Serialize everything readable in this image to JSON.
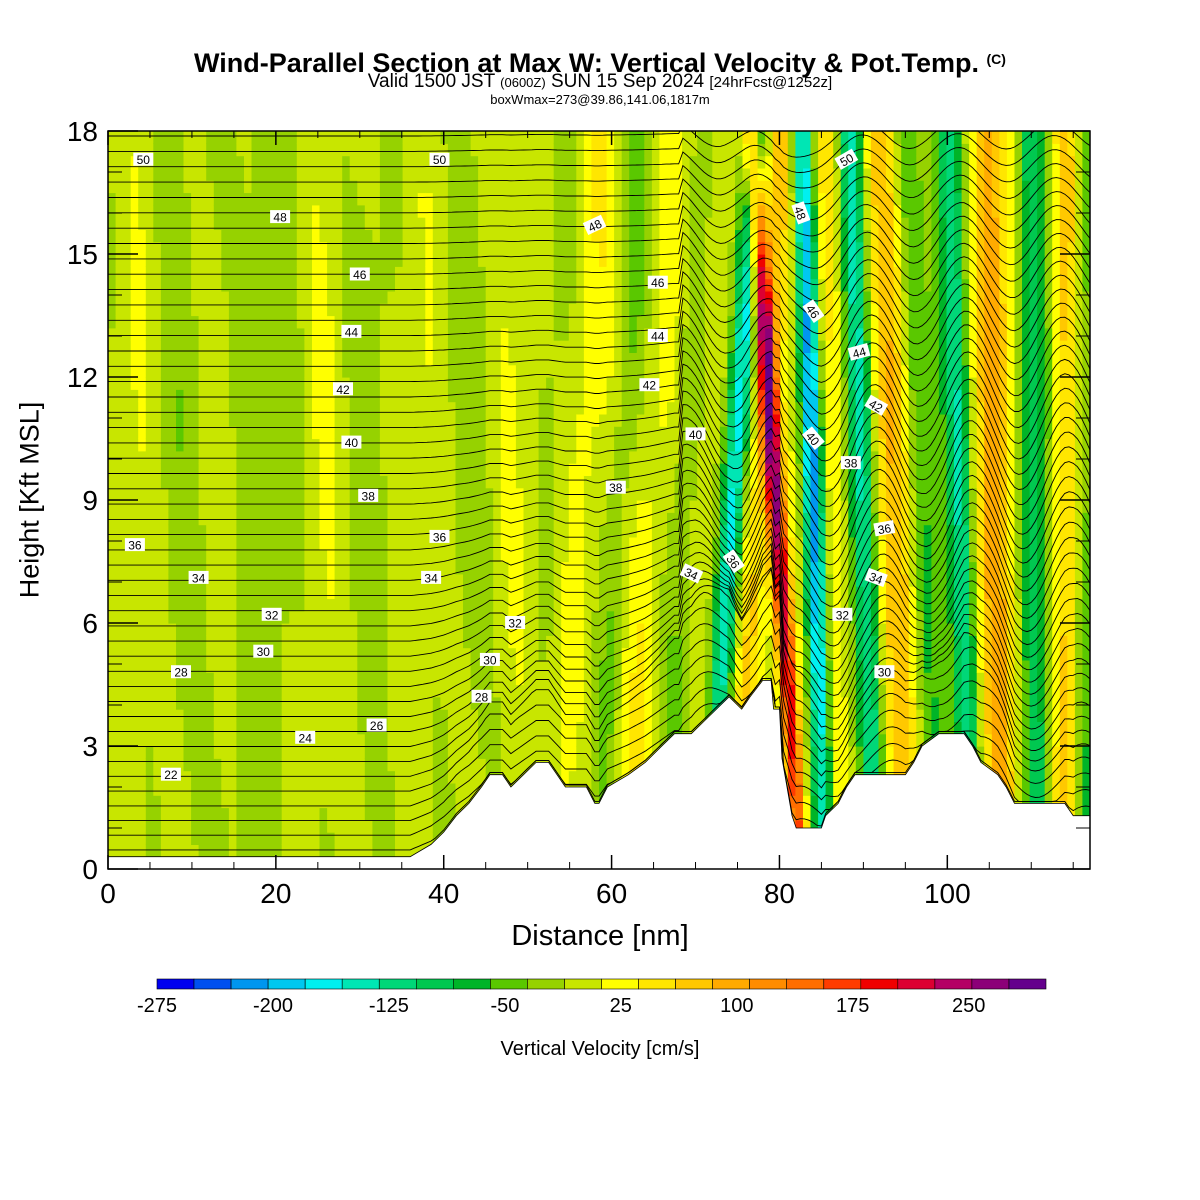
{
  "title": "Wind-Parallel Section at Max W: Vertical Velocity & Pot.Temp.",
  "title_mark": "(C)",
  "subtitle_valid": "Valid 1500 JST",
  "subtitle_utc": "(0600Z)",
  "subtitle_date": "SUN 15 Sep 2024",
  "subtitle_fcst": "[24hrFcst@1252z]",
  "subtitle_box": "boxWmax=273@39.86,141.06,1817m",
  "chart_data": {
    "type": "heatmap",
    "xlabel": "Distance [nm]",
    "ylabel": "Height [Kft MSL]",
    "xlim": [
      0,
      117
    ],
    "ylim": [
      0,
      18
    ],
    "x_ticks": [
      0,
      20,
      40,
      60,
      80,
      100
    ],
    "y_ticks": [
      0,
      3,
      6,
      9,
      12,
      15,
      18
    ],
    "colorbar": {
      "label": "Vertical Velocity [cm/s]",
      "tick_values": [
        -275,
        -200,
        -125,
        -50,
        25,
        100,
        175,
        250
      ],
      "tick_labels": [
        "-275",
        "-200",
        "-125",
        "-50",
        "25",
        "100",
        "175",
        "250"
      ],
      "levels": [
        -275,
        -250,
        -225,
        -200,
        -175,
        -150,
        -125,
        -100,
        -75,
        -50,
        -25,
        0,
        25,
        50,
        75,
        100,
        125,
        150,
        175,
        200,
        225,
        250,
        275,
        300
      ],
      "colors": [
        "#0000f0",
        "#0050f0",
        "#0096f0",
        "#00c8f0",
        "#00f0f0",
        "#00e6b4",
        "#00d778",
        "#00c850",
        "#00b428",
        "#5ac800",
        "#96d200",
        "#c8e600",
        "#ffff00",
        "#ffe600",
        "#ffc800",
        "#ffaa00",
        "#ff8c00",
        "#ff6e00",
        "#ff3c00",
        "#f00000",
        "#dc0032",
        "#b40064",
        "#8c0078",
        "#64008c"
      ]
    },
    "terrain": [
      [
        0,
        0.3
      ],
      [
        36,
        0.3
      ],
      [
        38.5,
        0.6
      ],
      [
        40,
        0.9
      ],
      [
        41.5,
        1.3
      ],
      [
        43,
        1.6
      ],
      [
        44.5,
        2.0
      ],
      [
        45.5,
        2.3
      ],
      [
        47,
        2.3
      ],
      [
        48,
        2.0
      ],
      [
        49.5,
        2.3
      ],
      [
        51,
        2.6
      ],
      [
        52.5,
        2.6
      ],
      [
        53.5,
        2.3
      ],
      [
        54.5,
        2.0
      ],
      [
        57,
        2.0
      ],
      [
        58,
        1.6
      ],
      [
        58.5,
        1.6
      ],
      [
        59.5,
        2.0
      ],
      [
        62,
        2.3
      ],
      [
        64,
        2.6
      ],
      [
        66,
        3.0
      ],
      [
        67.5,
        3.3
      ],
      [
        69.5,
        3.3
      ],
      [
        71,
        3.6
      ],
      [
        72.5,
        3.9
      ],
      [
        74,
        4.2
      ],
      [
        75.5,
        3.9
      ],
      [
        76.5,
        4.2
      ],
      [
        78,
        4.6
      ],
      [
        79,
        4.6
      ],
      [
        79.3,
        3.9
      ],
      [
        80,
        3.9
      ],
      [
        80.3,
        2.7
      ],
      [
        81.5,
        1.3
      ],
      [
        82,
        1.0
      ],
      [
        85,
        1.0
      ],
      [
        85.5,
        1.3
      ],
      [
        87,
        1.6
      ],
      [
        88,
        2.0
      ],
      [
        89,
        2.3
      ],
      [
        95,
        2.3
      ],
      [
        96,
        2.6
      ],
      [
        97,
        3.0
      ],
      [
        99,
        3.3
      ],
      [
        102,
        3.3
      ],
      [
        103,
        3.0
      ],
      [
        104,
        2.6
      ],
      [
        106,
        2.3
      ],
      [
        107,
        2.0
      ],
      [
        108,
        1.6
      ],
      [
        114,
        1.6
      ],
      [
        115,
        1.3
      ],
      [
        117,
        1.3
      ]
    ],
    "w_bands": [
      {
        "x": 55,
        "w": 35,
        "tilt": 0.3,
        "width": 2.2
      },
      {
        "x": 60,
        "w": -40,
        "tilt": 0.3,
        "width": 1.8
      },
      {
        "x": 64,
        "w": 45,
        "tilt": 0.3,
        "width": 2.5
      },
      {
        "x": 68,
        "w": -30,
        "tilt": 0.25,
        "width": 1.8
      },
      {
        "x": 73.5,
        "w": -170,
        "tilt": 0.32,
        "width": 1.4
      },
      {
        "x": 76.5,
        "w": 80,
        "tilt": 0.32,
        "width": 1.8
      },
      {
        "x": 80.5,
        "w": 275,
        "tilt": -0.32,
        "width": 1.1
      },
      {
        "x": 84.5,
        "w": -250,
        "tilt": -0.15,
        "width": 1.3
      },
      {
        "x": 86.5,
        "w": 60,
        "tilt": -0.1,
        "width": 1.8
      },
      {
        "x": 90.5,
        "w": -140,
        "tilt": -0.18,
        "width": 1.5
      },
      {
        "x": 94,
        "w": 90,
        "tilt": -0.2,
        "width": 2.2
      },
      {
        "x": 97.5,
        "w": -70,
        "tilt": -0.22,
        "width": 1.6
      },
      {
        "x": 102,
        "w": -120,
        "tilt": -0.15,
        "width": 1.4
      },
      {
        "x": 106,
        "w": 100,
        "tilt": -0.1,
        "width": 2.0
      },
      {
        "x": 110.5,
        "w": -90,
        "tilt": -0.05,
        "width": 1.6
      },
      {
        "x": 114,
        "w": 80,
        "tilt": 0,
        "width": 1.6
      },
      {
        "x": 116.5,
        "w": -60,
        "tilt": 0,
        "width": 1.2
      }
    ],
    "theta_labels": [
      {
        "text": "50",
        "x": 4.2,
        "y": 17.3,
        "angle": 0
      },
      {
        "text": "50",
        "x": 39.5,
        "y": 17.3,
        "angle": 0
      },
      {
        "text": "50",
        "x": 88,
        "y": 17.3,
        "angle": -30
      },
      {
        "text": "48",
        "x": 20.5,
        "y": 15.9,
        "angle": 0
      },
      {
        "text": "48",
        "x": 58,
        "y": 15.7,
        "angle": -25
      },
      {
        "text": "48",
        "x": 82.5,
        "y": 16.0,
        "angle": 70
      },
      {
        "text": "46",
        "x": 30,
        "y": 14.5,
        "angle": 0
      },
      {
        "text": "46",
        "x": 65.5,
        "y": 14.3,
        "angle": 0
      },
      {
        "text": "46",
        "x": 84,
        "y": 13.6,
        "angle": 55
      },
      {
        "text": "44",
        "x": 29,
        "y": 13.1,
        "angle": 0
      },
      {
        "text": "44",
        "x": 65.5,
        "y": 13.0,
        "angle": 0
      },
      {
        "text": "44",
        "x": 89.5,
        "y": 12.6,
        "angle": -15
      },
      {
        "text": "42",
        "x": 28,
        "y": 11.7,
        "angle": 0
      },
      {
        "text": "42",
        "x": 64.5,
        "y": 11.8,
        "angle": 0
      },
      {
        "text": "42",
        "x": 91.5,
        "y": 11.3,
        "angle": 30
      },
      {
        "text": "40",
        "x": 29,
        "y": 10.4,
        "angle": 0
      },
      {
        "text": "40",
        "x": 70,
        "y": 10.6,
        "angle": 0
      },
      {
        "text": "40",
        "x": 84,
        "y": 10.5,
        "angle": 50
      },
      {
        "text": "38",
        "x": 31,
        "y": 9.1,
        "angle": 0
      },
      {
        "text": "38",
        "x": 60.5,
        "y": 9.3,
        "angle": 0
      },
      {
        "text": "38",
        "x": 88.5,
        "y": 9.9,
        "angle": 0
      },
      {
        "text": "36",
        "x": 3.2,
        "y": 7.9,
        "angle": 0
      },
      {
        "text": "36",
        "x": 39.5,
        "y": 8.1,
        "angle": 0
      },
      {
        "text": "36",
        "x": 74.5,
        "y": 7.5,
        "angle": 55
      },
      {
        "text": "36",
        "x": 92.5,
        "y": 8.3,
        "angle": -10
      },
      {
        "text": "34",
        "x": 10.8,
        "y": 7.1,
        "angle": 0
      },
      {
        "text": "34",
        "x": 38.5,
        "y": 7.1,
        "angle": 0
      },
      {
        "text": "34",
        "x": 69.5,
        "y": 7.2,
        "angle": 25
      },
      {
        "text": "34",
        "x": 91.5,
        "y": 7.1,
        "angle": 20
      },
      {
        "text": "32",
        "x": 19.5,
        "y": 6.2,
        "angle": 0
      },
      {
        "text": "32",
        "x": 48.5,
        "y": 6.0,
        "angle": 0
      },
      {
        "text": "32",
        "x": 87.5,
        "y": 6.2,
        "angle": 0
      },
      {
        "text": "30",
        "x": 18.5,
        "y": 5.3,
        "angle": 0
      },
      {
        "text": "30",
        "x": 45.5,
        "y": 5.1,
        "angle": 0
      },
      {
        "text": "30",
        "x": 92.5,
        "y": 4.8,
        "angle": 0
      },
      {
        "text": "28",
        "x": 8.7,
        "y": 4.8,
        "angle": 0
      },
      {
        "text": "28",
        "x": 44.5,
        "y": 4.2,
        "angle": 0
      },
      {
        "text": "26",
        "x": 32,
        "y": 3.5,
        "angle": 0
      },
      {
        "text": "24",
        "x": 23.5,
        "y": 3.2,
        "angle": 0
      },
      {
        "text": "22",
        "x": 7.5,
        "y": 2.3,
        "angle": 0
      }
    ]
  }
}
